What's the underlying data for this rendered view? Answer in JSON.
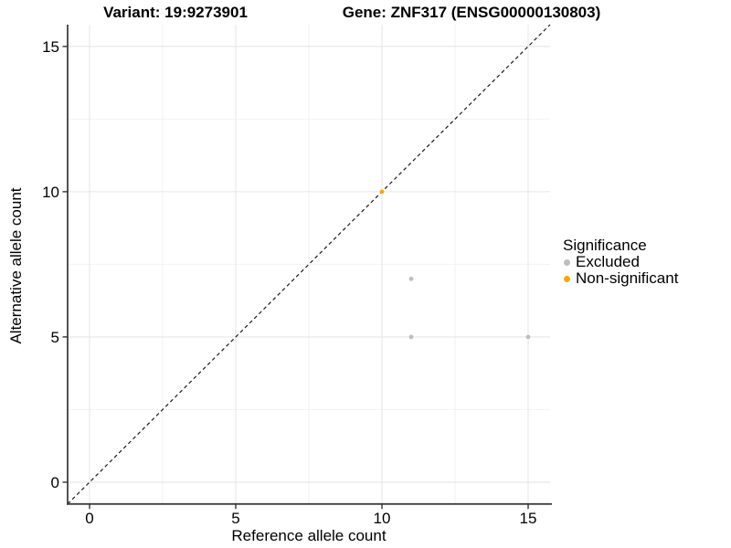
{
  "chart_data": {
    "type": "scatter",
    "title_left": "Variant: 19:9273901",
    "title_right": "Gene: ZNF317 (ENSG00000130803)",
    "xlabel": "Reference allele count",
    "ylabel": "Alternative allele count",
    "xlim": [
      -0.75,
      15.75
    ],
    "ylim": [
      -0.75,
      15.75
    ],
    "x_ticks": [
      0,
      5,
      10,
      15
    ],
    "y_ticks": [
      0,
      5,
      10,
      15
    ],
    "x_minor_ticks": [
      2.5,
      7.5,
      12.5
    ],
    "y_minor_ticks": [
      2.5,
      7.5,
      12.5
    ],
    "grid": true,
    "identity_line": {
      "style": "dashed",
      "color": "#1a1a1a",
      "from": [
        -0.75,
        -0.75
      ],
      "to": [
        15.75,
        15.75
      ]
    },
    "legend": {
      "title": "Significance",
      "position": "right"
    },
    "series": [
      {
        "name": "Excluded",
        "color": "#bebebe",
        "points": [
          [
            11,
            7
          ],
          [
            11,
            5
          ],
          [
            15,
            5
          ]
        ]
      },
      {
        "name": "Non-significant",
        "color": "#ffa500",
        "points": [
          [
            10,
            10
          ]
        ]
      }
    ],
    "colors": {
      "major_grid": "#e6e6e6",
      "minor_grid": "#f2f2f2",
      "axis_line": "#404040",
      "tick": "#333333",
      "text": "#000000"
    }
  }
}
